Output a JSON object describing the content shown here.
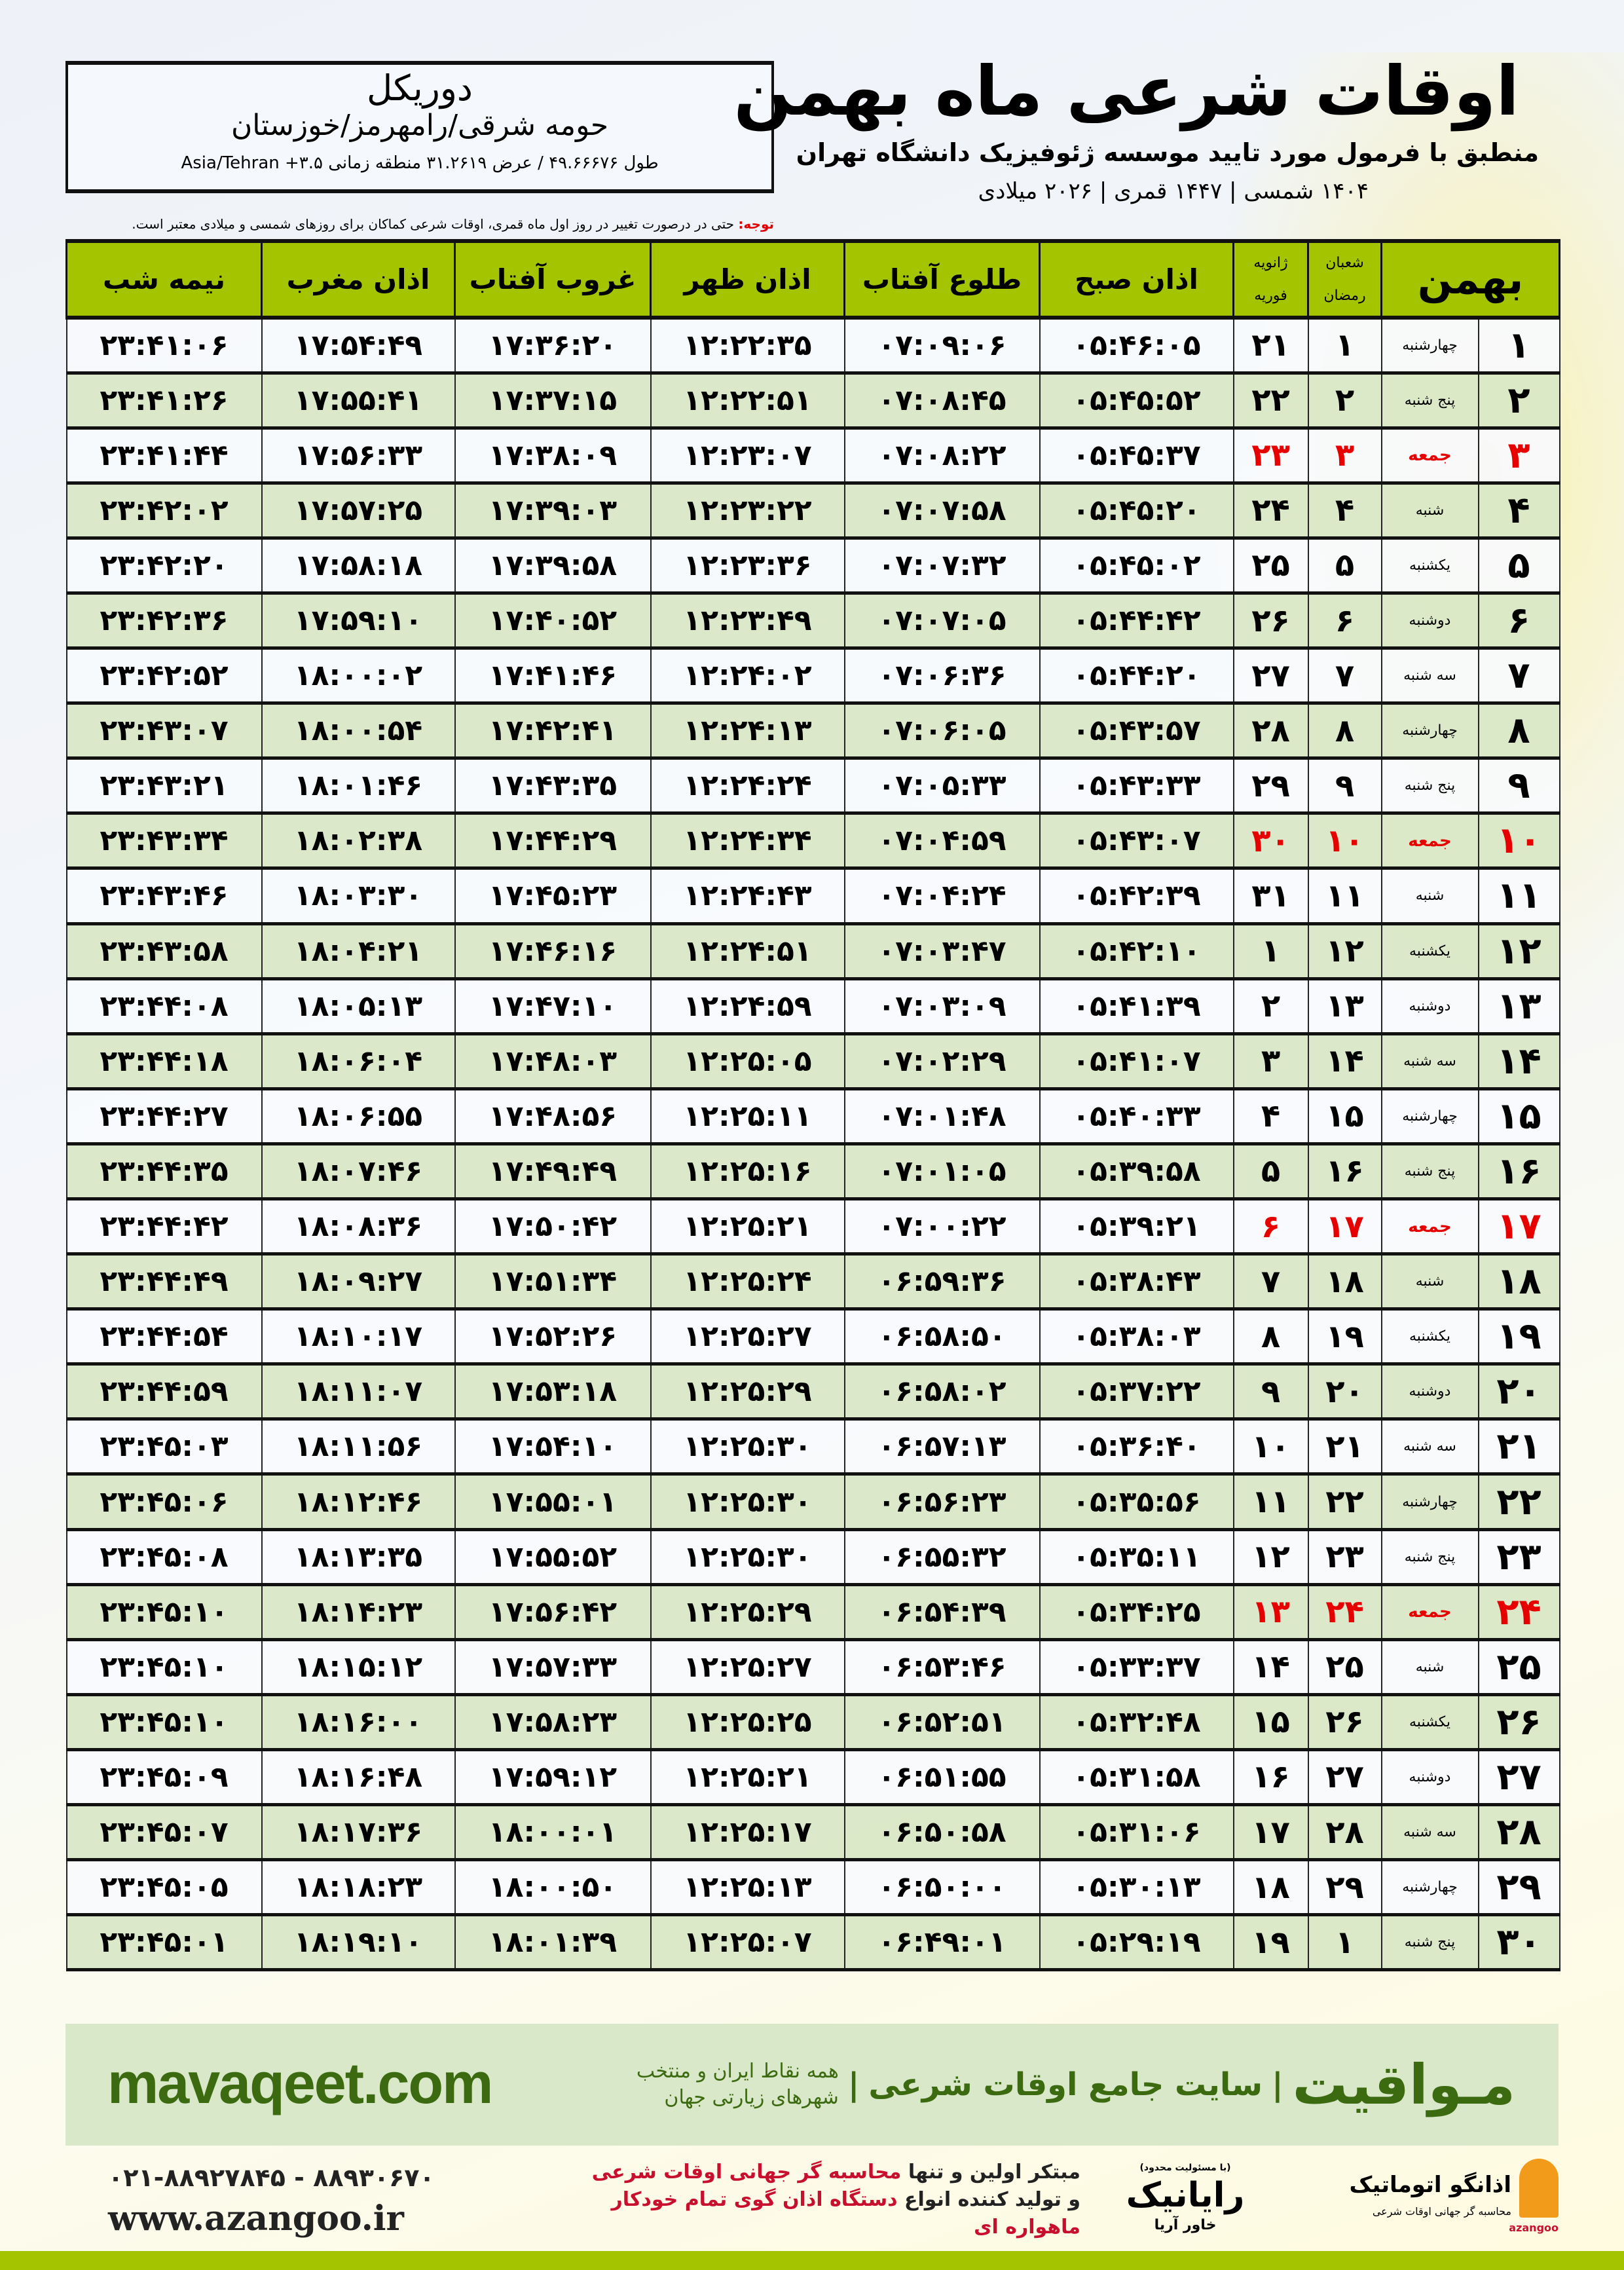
{
  "location": {
    "city": "دوریکل",
    "region": "حومه شرقی/رامهرمز/خوزستان",
    "coords": "طول ۴۹.۶۶۶۷۶ / عرض ۳۱.۲۶۱۹ منطقه زمانی Asia/Tehran +۳.۵"
  },
  "header": {
    "title": "اوقات شرعی ماه بهمن",
    "subtitle": "منطبق با فرمول مورد تایید موسسه ژئوفیزیک دانشگاه تهران",
    "dates": "۱۴۰۴ شمسی | ۱۴۴۷ قمری | ۲۰۲۶ میلادی"
  },
  "note": {
    "label": "توجه:",
    "text": " حتی در درصورت تغییر در روز اول ماه قمری، اوقات شرعی کماکان برای روزهای شمسی و میلادی معتبر است."
  },
  "table": {
    "columns": {
      "month": "بهمن",
      "hijri_top": "شعبان",
      "hijri_bottom": "رمضان",
      "greg_top": "ژانویه",
      "greg_bottom": "فوریه",
      "fajr": "اذان صبح",
      "sunrise": "طلوع آفتاب",
      "dhuhr": "اذان ظهر",
      "sunset": "غروب آفتاب",
      "maghrib": "اذان مغرب",
      "midnight": "نیمه شب"
    },
    "holiday_color": "#e60000",
    "header_color": "#a4c400",
    "rows": [
      {
        "day": "۱",
        "weekday": "چهارشنبه",
        "hijri": "۱",
        "greg": "۲۱",
        "fajr": "۰۵:۴۶:۰۵",
        "sunrise": "۰۷:۰۹:۰۶",
        "dhuhr": "۱۲:۲۲:۳۵",
        "sunset": "۱۷:۳۶:۲۰",
        "maghrib": "۱۷:۵۴:۴۹",
        "midnight": "۲۳:۴۱:۰۶",
        "friday": false
      },
      {
        "day": "۲",
        "weekday": "پنج شنبه",
        "hijri": "۲",
        "greg": "۲۲",
        "fajr": "۰۵:۴۵:۵۲",
        "sunrise": "۰۷:۰۸:۴۵",
        "dhuhr": "۱۲:۲۲:۵۱",
        "sunset": "۱۷:۳۷:۱۵",
        "maghrib": "۱۷:۵۵:۴۱",
        "midnight": "۲۳:۴۱:۲۶",
        "friday": false
      },
      {
        "day": "۳",
        "weekday": "جمعه",
        "hijri": "۳",
        "greg": "۲۳",
        "fajr": "۰۵:۴۵:۳۷",
        "sunrise": "۰۷:۰۸:۲۲",
        "dhuhr": "۱۲:۲۳:۰۷",
        "sunset": "۱۷:۳۸:۰۹",
        "maghrib": "۱۷:۵۶:۳۳",
        "midnight": "۲۳:۴۱:۴۴",
        "friday": true
      },
      {
        "day": "۴",
        "weekday": "شنبه",
        "hijri": "۴",
        "greg": "۲۴",
        "fajr": "۰۵:۴۵:۲۰",
        "sunrise": "۰۷:۰۷:۵۸",
        "dhuhr": "۱۲:۲۳:۲۲",
        "sunset": "۱۷:۳۹:۰۳",
        "maghrib": "۱۷:۵۷:۲۵",
        "midnight": "۲۳:۴۲:۰۲",
        "friday": false
      },
      {
        "day": "۵",
        "weekday": "یکشنبه",
        "hijri": "۵",
        "greg": "۲۵",
        "fajr": "۰۵:۴۵:۰۲",
        "sunrise": "۰۷:۰۷:۳۲",
        "dhuhr": "۱۲:۲۳:۳۶",
        "sunset": "۱۷:۳۹:۵۸",
        "maghrib": "۱۷:۵۸:۱۸",
        "midnight": "۲۳:۴۲:۲۰",
        "friday": false
      },
      {
        "day": "۶",
        "weekday": "دوشنبه",
        "hijri": "۶",
        "greg": "۲۶",
        "fajr": "۰۵:۴۴:۴۲",
        "sunrise": "۰۷:۰۷:۰۵",
        "dhuhr": "۱۲:۲۳:۴۹",
        "sunset": "۱۷:۴۰:۵۲",
        "maghrib": "۱۷:۵۹:۱۰",
        "midnight": "۲۳:۴۲:۳۶",
        "friday": false
      },
      {
        "day": "۷",
        "weekday": "سه شنبه",
        "hijri": "۷",
        "greg": "۲۷",
        "fajr": "۰۵:۴۴:۲۰",
        "sunrise": "۰۷:۰۶:۳۶",
        "dhuhr": "۱۲:۲۴:۰۲",
        "sunset": "۱۷:۴۱:۴۶",
        "maghrib": "۱۸:۰۰:۰۲",
        "midnight": "۲۳:۴۲:۵۲",
        "friday": false
      },
      {
        "day": "۸",
        "weekday": "چهارشنبه",
        "hijri": "۸",
        "greg": "۲۸",
        "fajr": "۰۵:۴۳:۵۷",
        "sunrise": "۰۷:۰۶:۰۵",
        "dhuhr": "۱۲:۲۴:۱۳",
        "sunset": "۱۷:۴۲:۴۱",
        "maghrib": "۱۸:۰۰:۵۴",
        "midnight": "۲۳:۴۳:۰۷",
        "friday": false
      },
      {
        "day": "۹",
        "weekday": "پنج شنبه",
        "hijri": "۹",
        "greg": "۲۹",
        "fajr": "۰۵:۴۳:۳۳",
        "sunrise": "۰۷:۰۵:۳۳",
        "dhuhr": "۱۲:۲۴:۲۴",
        "sunset": "۱۷:۴۳:۳۵",
        "maghrib": "۱۸:۰۱:۴۶",
        "midnight": "۲۳:۴۳:۲۱",
        "friday": false
      },
      {
        "day": "۱۰",
        "weekday": "جمعه",
        "hijri": "۱۰",
        "greg": "۳۰",
        "fajr": "۰۵:۴۳:۰۷",
        "sunrise": "۰۷:۰۴:۵۹",
        "dhuhr": "۱۲:۲۴:۳۴",
        "sunset": "۱۷:۴۴:۲۹",
        "maghrib": "۱۸:۰۲:۳۸",
        "midnight": "۲۳:۴۳:۳۴",
        "friday": true
      },
      {
        "day": "۱۱",
        "weekday": "شنبه",
        "hijri": "۱۱",
        "greg": "۳۱",
        "fajr": "۰۵:۴۲:۳۹",
        "sunrise": "۰۷:۰۴:۲۴",
        "dhuhr": "۱۲:۲۴:۴۳",
        "sunset": "۱۷:۴۵:۲۳",
        "maghrib": "۱۸:۰۳:۳۰",
        "midnight": "۲۳:۴۳:۴۶",
        "friday": false
      },
      {
        "day": "۱۲",
        "weekday": "یکشنبه",
        "hijri": "۱۲",
        "greg": "۱",
        "fajr": "۰۵:۴۲:۱۰",
        "sunrise": "۰۷:۰۳:۴۷",
        "dhuhr": "۱۲:۲۴:۵۱",
        "sunset": "۱۷:۴۶:۱۶",
        "maghrib": "۱۸:۰۴:۲۱",
        "midnight": "۲۳:۴۳:۵۸",
        "friday": false
      },
      {
        "day": "۱۳",
        "weekday": "دوشنبه",
        "hijri": "۱۳",
        "greg": "۲",
        "fajr": "۰۵:۴۱:۳۹",
        "sunrise": "۰۷:۰۳:۰۹",
        "dhuhr": "۱۲:۲۴:۵۹",
        "sunset": "۱۷:۴۷:۱۰",
        "maghrib": "۱۸:۰۵:۱۳",
        "midnight": "۲۳:۴۴:۰۸",
        "friday": false
      },
      {
        "day": "۱۴",
        "weekday": "سه شنبه",
        "hijri": "۱۴",
        "greg": "۳",
        "fajr": "۰۵:۴۱:۰۷",
        "sunrise": "۰۷:۰۲:۲۹",
        "dhuhr": "۱۲:۲۵:۰۵",
        "sunset": "۱۷:۴۸:۰۳",
        "maghrib": "۱۸:۰۶:۰۴",
        "midnight": "۲۳:۴۴:۱۸",
        "friday": false
      },
      {
        "day": "۱۵",
        "weekday": "چهارشنبه",
        "hijri": "۱۵",
        "greg": "۴",
        "fajr": "۰۵:۴۰:۳۳",
        "sunrise": "۰۷:۰۱:۴۸",
        "dhuhr": "۱۲:۲۵:۱۱",
        "sunset": "۱۷:۴۸:۵۶",
        "maghrib": "۱۸:۰۶:۵۵",
        "midnight": "۲۳:۴۴:۲۷",
        "friday": false
      },
      {
        "day": "۱۶",
        "weekday": "پنج شنبه",
        "hijri": "۱۶",
        "greg": "۵",
        "fajr": "۰۵:۳۹:۵۸",
        "sunrise": "۰۷:۰۱:۰۵",
        "dhuhr": "۱۲:۲۵:۱۶",
        "sunset": "۱۷:۴۹:۴۹",
        "maghrib": "۱۸:۰۷:۴۶",
        "midnight": "۲۳:۴۴:۳۵",
        "friday": false
      },
      {
        "day": "۱۷",
        "weekday": "جمعه",
        "hijri": "۱۷",
        "greg": "۶",
        "fajr": "۰۵:۳۹:۲۱",
        "sunrise": "۰۷:۰۰:۲۲",
        "dhuhr": "۱۲:۲۵:۲۱",
        "sunset": "۱۷:۵۰:۴۲",
        "maghrib": "۱۸:۰۸:۳۶",
        "midnight": "۲۳:۴۴:۴۲",
        "friday": true
      },
      {
        "day": "۱۸",
        "weekday": "شنبه",
        "hijri": "۱۸",
        "greg": "۷",
        "fajr": "۰۵:۳۸:۴۳",
        "sunrise": "۰۶:۵۹:۳۶",
        "dhuhr": "۱۲:۲۵:۲۴",
        "sunset": "۱۷:۵۱:۳۴",
        "maghrib": "۱۸:۰۹:۲۷",
        "midnight": "۲۳:۴۴:۴۹",
        "friday": false
      },
      {
        "day": "۱۹",
        "weekday": "یکشنبه",
        "hijri": "۱۹",
        "greg": "۸",
        "fajr": "۰۵:۳۸:۰۳",
        "sunrise": "۰۶:۵۸:۵۰",
        "dhuhr": "۱۲:۲۵:۲۷",
        "sunset": "۱۷:۵۲:۲۶",
        "maghrib": "۱۸:۱۰:۱۷",
        "midnight": "۲۳:۴۴:۵۴",
        "friday": false
      },
      {
        "day": "۲۰",
        "weekday": "دوشنبه",
        "hijri": "۲۰",
        "greg": "۹",
        "fajr": "۰۵:۳۷:۲۲",
        "sunrise": "۰۶:۵۸:۰۲",
        "dhuhr": "۱۲:۲۵:۲۹",
        "sunset": "۱۷:۵۳:۱۸",
        "maghrib": "۱۸:۱۱:۰۷",
        "midnight": "۲۳:۴۴:۵۹",
        "friday": false
      },
      {
        "day": "۲۱",
        "weekday": "سه شنبه",
        "hijri": "۲۱",
        "greg": "۱۰",
        "fajr": "۰۵:۳۶:۴۰",
        "sunrise": "۰۶:۵۷:۱۳",
        "dhuhr": "۱۲:۲۵:۳۰",
        "sunset": "۱۷:۵۴:۱۰",
        "maghrib": "۱۸:۱۱:۵۶",
        "midnight": "۲۳:۴۵:۰۳",
        "friday": false
      },
      {
        "day": "۲۲",
        "weekday": "چهارشنبه",
        "hijri": "۲۲",
        "greg": "۱۱",
        "fajr": "۰۵:۳۵:۵۶",
        "sunrise": "۰۶:۵۶:۲۳",
        "dhuhr": "۱۲:۲۵:۳۰",
        "sunset": "۱۷:۵۵:۰۱",
        "maghrib": "۱۸:۱۲:۴۶",
        "midnight": "۲۳:۴۵:۰۶",
        "friday": false
      },
      {
        "day": "۲۳",
        "weekday": "پنج شنبه",
        "hijri": "۲۳",
        "greg": "۱۲",
        "fajr": "۰۵:۳۵:۱۱",
        "sunrise": "۰۶:۵۵:۳۲",
        "dhuhr": "۱۲:۲۵:۳۰",
        "sunset": "۱۷:۵۵:۵۲",
        "maghrib": "۱۸:۱۳:۳۵",
        "midnight": "۲۳:۴۵:۰۸",
        "friday": false
      },
      {
        "day": "۲۴",
        "weekday": "جمعه",
        "hijri": "۲۴",
        "greg": "۱۳",
        "fajr": "۰۵:۳۴:۲۵",
        "sunrise": "۰۶:۵۴:۳۹",
        "dhuhr": "۱۲:۲۵:۲۹",
        "sunset": "۱۷:۵۶:۴۲",
        "maghrib": "۱۸:۱۴:۲۳",
        "midnight": "۲۳:۴۵:۱۰",
        "friday": true
      },
      {
        "day": "۲۵",
        "weekday": "شنبه",
        "hijri": "۲۵",
        "greg": "۱۴",
        "fajr": "۰۵:۳۳:۳۷",
        "sunrise": "۰۶:۵۳:۴۶",
        "dhuhr": "۱۲:۲۵:۲۷",
        "sunset": "۱۷:۵۷:۳۳",
        "maghrib": "۱۸:۱۵:۱۲",
        "midnight": "۲۳:۴۵:۱۰",
        "friday": false
      },
      {
        "day": "۲۶",
        "weekday": "یکشنبه",
        "hijri": "۲۶",
        "greg": "۱۵",
        "fajr": "۰۵:۳۲:۴۸",
        "sunrise": "۰۶:۵۲:۵۱",
        "dhuhr": "۱۲:۲۵:۲۵",
        "sunset": "۱۷:۵۸:۲۳",
        "maghrib": "۱۸:۱۶:۰۰",
        "midnight": "۲۳:۴۵:۱۰",
        "friday": false
      },
      {
        "day": "۲۷",
        "weekday": "دوشنبه",
        "hijri": "۲۷",
        "greg": "۱۶",
        "fajr": "۰۵:۳۱:۵۸",
        "sunrise": "۰۶:۵۱:۵۵",
        "dhuhr": "۱۲:۲۵:۲۱",
        "sunset": "۱۷:۵۹:۱۲",
        "maghrib": "۱۸:۱۶:۴۸",
        "midnight": "۲۳:۴۵:۰۹",
        "friday": false
      },
      {
        "day": "۲۸",
        "weekday": "سه شنبه",
        "hijri": "۲۸",
        "greg": "۱۷",
        "fajr": "۰۵:۳۱:۰۶",
        "sunrise": "۰۶:۵۰:۵۸",
        "dhuhr": "۱۲:۲۵:۱۷",
        "sunset": "۱۸:۰۰:۰۱",
        "maghrib": "۱۸:۱۷:۳۶",
        "midnight": "۲۳:۴۵:۰۷",
        "friday": false
      },
      {
        "day": "۲۹",
        "weekday": "چهارشنبه",
        "hijri": "۲۹",
        "greg": "۱۸",
        "fajr": "۰۵:۳۰:۱۳",
        "sunrise": "۰۶:۵۰:۰۰",
        "dhuhr": "۱۲:۲۵:۱۳",
        "sunset": "۱۸:۰۰:۵۰",
        "maghrib": "۱۸:۱۸:۲۳",
        "midnight": "۲۳:۴۵:۰۵",
        "friday": false
      },
      {
        "day": "۳۰",
        "weekday": "پنج شنبه",
        "hijri": "۱",
        "greg": "۱۹",
        "fajr": "۰۵:۲۹:۱۹",
        "sunrise": "۰۶:۴۹:۰۱",
        "dhuhr": "۱۲:۲۵:۰۷",
        "sunset": "۱۸:۰۱:۳۹",
        "maghrib": "۱۸:۱۹:۱۰",
        "midnight": "۲۳:۴۵:۰۱",
        "friday": false
      }
    ]
  },
  "footer": {
    "site": "mavaqeet.com",
    "brand": "مـواقیت",
    "brand_sep": "|",
    "brand_tagline": "سایت جامع اوقات شرعی",
    "brand_sub": "همه نقاط ایران و منتخب شهرهای زیارتی جهان",
    "phones": "۰۲۱-۸۸۹۲۷۸۴۵ - ۸۸۹۳۰۶۷۰",
    "web": "www.azangoo.ir",
    "promo_line1_a": "مبتکر اولین و تنها ",
    "promo_line1_b": "محاسبه گر جهانی اوقات شرعی",
    "promo_line2_a": "و تولید کننده انواع ",
    "promo_line2_b": "دستگاه اذان گوی تمام خودکار ماهواره ای",
    "rayanik_top": "(با مسئولیت محدود)",
    "rayanik_name": "رایانیک",
    "rayanik_sub": "خاور آریا",
    "azangoo_name": "اذانگو اتوماتیک",
    "azangoo_sub": "محاسبه گر جهانی اوقات شرعی",
    "azangoo_latin": "azangoo",
    "accent_color": "#3c6a10",
    "promo_red": "#c8102e"
  }
}
